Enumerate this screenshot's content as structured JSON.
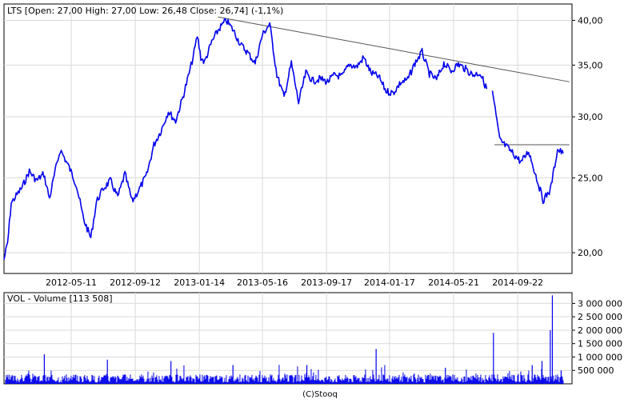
{
  "header": {
    "text": "LTS [Open: 27,00  High: 27,00  Low: 26,48  Close: 26,74] (-1,1%)"
  },
  "volume_header": {
    "text": "VOL - Volume [113 508]"
  },
  "footer": {
    "text": "(C)Stooq"
  },
  "colors": {
    "series": "#0000ee",
    "grid": "#d9d9d9",
    "frame": "#000000",
    "trendline": "#555555",
    "background": "#ffffff"
  },
  "chart_data": [
    {
      "type": "line",
      "title": "LTS [Open: 27,00  High: 27,00  Low: 26,48  Close: 26,74] (-1,1%)",
      "scale": "log",
      "ylim": [
        18.8,
        42.0
      ],
      "y_ticks": [
        {
          "value": 20,
          "label": "20,00"
        },
        {
          "value": 25,
          "label": "25,00"
        },
        {
          "value": 30,
          "label": "30,00"
        },
        {
          "value": 35,
          "label": "35,00"
        },
        {
          "value": 40,
          "label": "40,00"
        }
      ],
      "x_ticks": [
        "2012-05-11",
        "2012-09-12",
        "2013-01-14",
        "2013-05-16",
        "2013-09-17",
        "2014-01-17",
        "2014-05-21",
        "2014-09-22"
      ],
      "x": [
        "2012-01-02",
        "2012-01-09",
        "2012-01-16",
        "2012-02-06",
        "2012-02-20",
        "2012-03-05",
        "2012-03-19",
        "2012-03-30",
        "2012-04-10",
        "2012-04-20",
        "2012-05-07",
        "2012-05-21",
        "2012-06-04",
        "2012-06-18",
        "2012-06-29",
        "2012-07-12",
        "2012-07-26",
        "2012-08-09",
        "2012-08-23",
        "2012-09-06",
        "2012-09-20",
        "2012-10-04",
        "2012-10-18",
        "2012-11-01",
        "2012-11-15",
        "2012-11-29",
        "2012-12-13",
        "2012-12-27",
        "2013-01-04",
        "2013-01-10",
        "2013-01-17",
        "2013-01-24",
        "2013-02-07",
        "2013-02-21",
        "2013-03-07",
        "2013-03-21",
        "2013-04-04",
        "2013-04-18",
        "2013-05-02",
        "2013-05-16",
        "2013-05-30",
        "2013-06-13",
        "2013-06-27",
        "2013-07-11",
        "2013-07-25",
        "2013-08-08",
        "2013-08-22",
        "2013-09-05",
        "2013-09-19",
        "2013-10-03",
        "2013-10-17",
        "2013-10-31",
        "2013-11-14",
        "2013-11-28",
        "2013-12-12",
        "2013-12-27",
        "2014-01-10",
        "2014-01-24",
        "2014-02-07",
        "2014-02-21",
        "2014-03-07",
        "2014-03-21",
        "2014-04-04",
        "2014-04-18",
        "2014-05-02",
        "2014-05-16",
        "2014-05-30",
        "2014-06-13",
        "2014-06-27",
        "2014-07-11",
        "2014-07-24",
        "2014-08-04",
        "2014-08-18",
        "2014-09-01",
        "2014-09-15",
        "2014-09-29",
        "2014-10-13",
        "2014-10-27",
        "2014-11-10",
        "2014-11-24",
        "2014-12-08",
        "2014-12-19"
      ],
      "values": [
        19.6,
        20.6,
        23.2,
        24.3,
        25.5,
        24.8,
        25.3,
        23.5,
        25.5,
        27.2,
        25.8,
        24.5,
        22.1,
        20.9,
        23.3,
        24.2,
        24.8,
        23.6,
        25.3,
        23.3,
        24.2,
        25.2,
        27.6,
        28.8,
        30.5,
        29.6,
        31.8,
        34.5,
        36.4,
        38.2,
        35.8,
        35.3,
        37.5,
        39.0,
        40.0,
        38.8,
        37.2,
        36.3,
        35.2,
        38.3,
        39.6,
        34.0,
        31.8,
        35.2,
        31.3,
        34.2,
        33.4,
        33.6,
        33.3,
        34.0,
        33.8,
        35.1,
        34.8,
        35.8,
        34.2,
        33.8,
        32.4,
        32.2,
        33.2,
        33.5,
        35.2,
        36.4,
        34.1,
        33.5,
        35.2,
        34.4,
        35.1,
        34.6,
        34.0,
        34.2,
        32.6,
        32.4,
        28.0,
        27.4,
        26.8,
        26.2,
        27.1,
        25.2,
        23.4,
        24.1,
        27.2,
        26.9
      ],
      "annotations": [
        {
          "type": "trendline",
          "from": {
            "x": "2013-02-19",
            "y": 40.4
          },
          "to": {
            "x": "2014-12-31",
            "y": 33.3
          }
        },
        {
          "type": "horizontal",
          "from": {
            "x": "2014-08-08",
            "y": 27.6
          },
          "to": {
            "x": "2014-12-31",
            "y": 27.6
          }
        }
      ]
    },
    {
      "type": "bar",
      "title": "VOL - Volume [113 508]",
      "ylim": [
        0,
        3400000
      ],
      "y_ticks": [
        {
          "value": 500000,
          "label": "500 000"
        },
        {
          "value": 1000000,
          "label": "1 000 000"
        },
        {
          "value": 1500000,
          "label": "1 500 000"
        },
        {
          "value": 2000000,
          "label": "2 000 000"
        },
        {
          "value": 2500000,
          "label": "2 500 000"
        },
        {
          "value": 3000000,
          "label": "3 000 000"
        }
      ],
      "baseline_level": 250000,
      "spikes": [
        {
          "x": "2012-03-20",
          "value": 1100000
        },
        {
          "x": "2012-07-20",
          "value": 900000
        },
        {
          "x": "2012-11-20",
          "value": 850000
        },
        {
          "x": "2013-03-20",
          "value": 700000
        },
        {
          "x": "2013-08-10",
          "value": 700000
        },
        {
          "x": "2013-12-22",
          "value": 1300000
        },
        {
          "x": "2014-05-05",
          "value": 600000
        },
        {
          "x": "2014-08-06",
          "value": 1900000
        },
        {
          "x": "2014-10-20",
          "value": 700000
        },
        {
          "x": "2014-11-08",
          "value": 850000
        },
        {
          "x": "2014-11-24",
          "value": 2000000
        },
        {
          "x": "2014-11-28",
          "value": 3300000
        },
        {
          "x": "2014-12-15",
          "value": 500000
        }
      ]
    }
  ]
}
